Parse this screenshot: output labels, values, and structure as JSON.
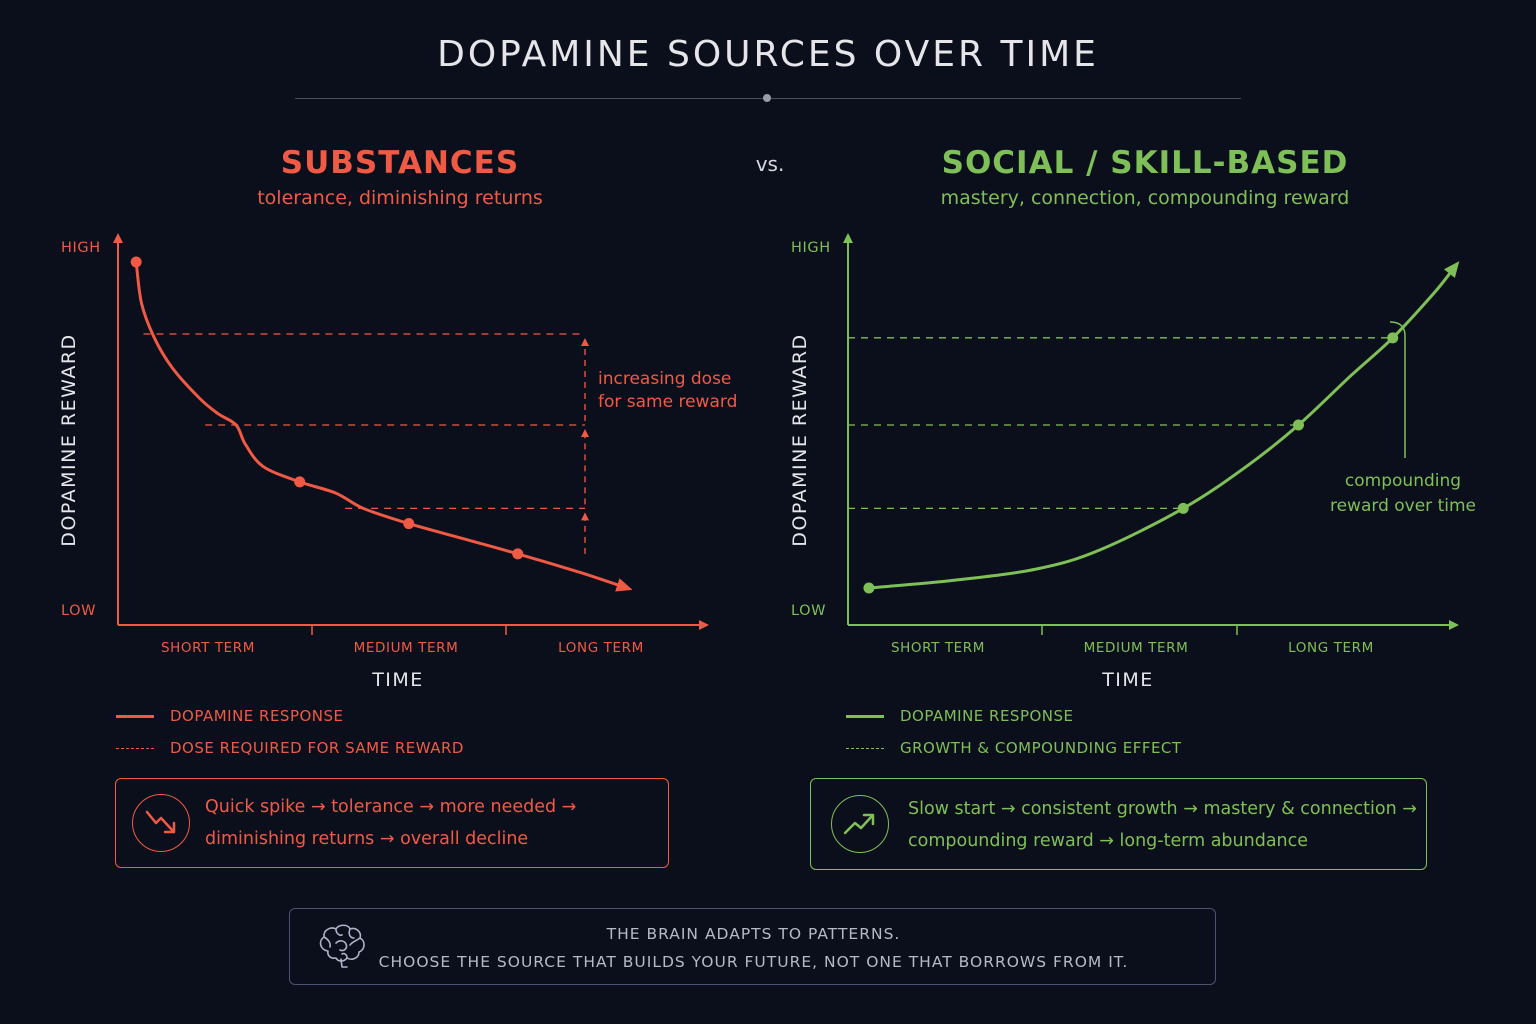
{
  "title": "DOPAMINE SOURCES OVER TIME",
  "vs_label": "vs.",
  "colors": {
    "substances": "#f05a45",
    "social": "#7fbf58",
    "background": "#0b0f1b"
  },
  "panels": [
    {
      "title": "SUBSTANCES",
      "subtitle": "tolerance, diminishing returns",
      "annotation": [
        "increasing dose",
        "for same reward"
      ],
      "legend": {
        "solid": "DOPAMINE RESPONSE",
        "dashed": "DOSE REQUIRED FOR SAME REWARD"
      },
      "box_line1": "Quick spike → tolerance → more needed →",
      "box_line2": "diminishing returns → overall decline",
      "box_icon": "trend-down-icon"
    },
    {
      "title": "SOCIAL / SKILL-BASED",
      "subtitle": "mastery, connection, compounding reward",
      "annotation": [
        "compounding",
        "reward over time"
      ],
      "legend": {
        "solid": "DOPAMINE RESPONSE",
        "dashed": "GROWTH & COMPOUNDING EFFECT"
      },
      "box_line1": "Slow start → consistent growth → mastery & connection →",
      "box_line2": "compounding reward → long-term abundance",
      "box_icon": "trend-up-icon"
    }
  ],
  "chart_data": [
    {
      "type": "line",
      "title": "SUBSTANCES",
      "xlabel": "TIME",
      "ylabel": "DOPAMINE REWARD",
      "x_ticks": [
        "SHORT TERM",
        "MEDIUM TERM",
        "LONG TERM"
      ],
      "y_ticks": [
        "LOW",
        "HIGH"
      ],
      "xlim": [
        0,
        3
      ],
      "ylim": [
        0,
        1
      ],
      "series": [
        {
          "name": "DOPAMINE RESPONSE",
          "style": "solid",
          "points": [
            [
              0.1,
              0.96
            ],
            [
              1.0,
              0.38
            ],
            [
              1.6,
              0.27
            ],
            [
              2.2,
              0.19
            ]
          ],
          "curve": [
            [
              0.1,
              0.96
            ],
            [
              0.13,
              0.85
            ],
            [
              0.2,
              0.76
            ],
            [
              0.3,
              0.68
            ],
            [
              0.45,
              0.6
            ],
            [
              0.55,
              0.56
            ],
            [
              0.65,
              0.53
            ],
            [
              0.7,
              0.48
            ],
            [
              0.8,
              0.42
            ],
            [
              1.0,
              0.38
            ],
            [
              1.2,
              0.35
            ],
            [
              1.35,
              0.31
            ],
            [
              1.6,
              0.27
            ],
            [
              1.9,
              0.23
            ],
            [
              2.2,
              0.19
            ],
            [
              2.55,
              0.14
            ],
            [
              2.8,
              0.1
            ]
          ],
          "end_arrow": true
        },
        {
          "name": "DOSE REQUIRED FOR SAME REWARD",
          "style": "dashed",
          "levels": [
            0.77,
            0.53,
            0.31
          ],
          "x_end": 2.4
        }
      ],
      "grid": false,
      "legend_position": "bottom-left"
    },
    {
      "type": "line",
      "title": "SOCIAL / SKILL-BASED",
      "xlabel": "TIME",
      "ylabel": "DOPAMINE REWARD",
      "x_ticks": [
        "SHORT TERM",
        "MEDIUM TERM",
        "LONG TERM"
      ],
      "y_ticks": [
        "LOW",
        "HIGH"
      ],
      "xlim": [
        0,
        3
      ],
      "ylim": [
        0,
        1
      ],
      "series": [
        {
          "name": "DOPAMINE RESPONSE",
          "style": "solid",
          "points": [
            [
              0.1,
              0.1
            ],
            [
              1.6,
              0.31
            ],
            [
              2.15,
              0.53
            ],
            [
              2.6,
              0.76
            ]
          ],
          "curve": [
            [
              0.1,
              0.1
            ],
            [
              0.5,
              0.12
            ],
            [
              0.9,
              0.15
            ],
            [
              1.2,
              0.2
            ],
            [
              1.6,
              0.31
            ],
            [
              1.9,
              0.42
            ],
            [
              2.15,
              0.53
            ],
            [
              2.4,
              0.66
            ],
            [
              2.6,
              0.76
            ],
            [
              2.8,
              0.88
            ],
            [
              2.9,
              0.95
            ]
          ],
          "end_arrow": true
        },
        {
          "name": "GROWTH & COMPOUNDING EFFECT",
          "style": "dashed",
          "levels": [
            0.31,
            0.53,
            0.76
          ]
        }
      ],
      "grid": false,
      "legend_position": "bottom-left"
    }
  ],
  "footer": {
    "icon": "brain-icon",
    "line1": "THE BRAIN ADAPTS TO PATTERNS.",
    "line2": "CHOOSE THE SOURCE THAT BUILDS YOUR FUTURE, NOT ONE THAT BORROWS FROM IT."
  }
}
